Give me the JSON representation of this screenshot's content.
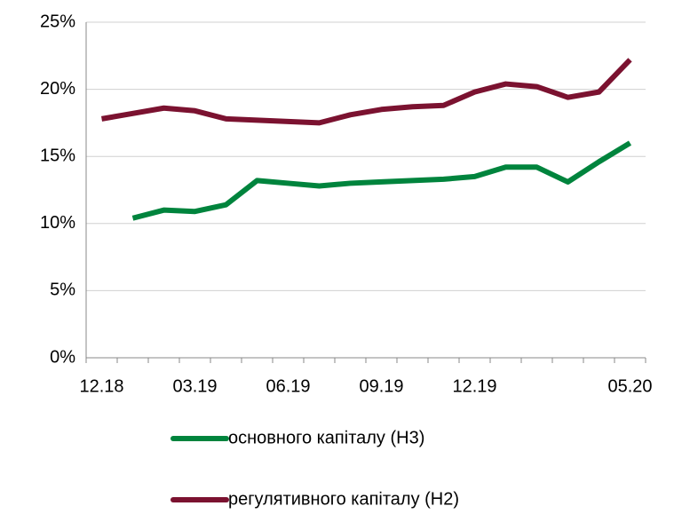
{
  "chart_data": {
    "type": "line",
    "categories": [
      "12.18",
      null,
      null,
      "03.19",
      null,
      null,
      "06.19",
      null,
      null,
      "09.19",
      null,
      null,
      "12.19",
      null,
      null,
      null,
      null,
      "05.20"
    ],
    "series": [
      {
        "name": "основного капіталу (Н3)",
        "color": "#00843d",
        "values": [
          null,
          10.4,
          11.0,
          10.9,
          11.4,
          13.2,
          13.0,
          12.8,
          13.0,
          13.1,
          13.2,
          13.3,
          13.5,
          14.2,
          14.2,
          13.1,
          14.6,
          16.0
        ]
      },
      {
        "name": "регулятивного капіталу (Н2)",
        "color": "#7b1230",
        "values": [
          17.8,
          18.2,
          18.6,
          18.4,
          17.8,
          17.7,
          17.6,
          17.5,
          18.1,
          18.5,
          18.7,
          18.8,
          19.8,
          20.4,
          20.2,
          19.4,
          19.8,
          22.2
        ]
      }
    ],
    "ylim": [
      0,
      25
    ],
    "yticks": [
      {
        "value": 0,
        "label": "0%"
      },
      {
        "value": 5,
        "label": "5%"
      },
      {
        "value": 10,
        "label": "10%"
      },
      {
        "value": 15,
        "label": "15%"
      },
      {
        "value": 20,
        "label": "20%"
      },
      {
        "value": 25,
        "label": "25%"
      }
    ],
    "grid": true
  }
}
